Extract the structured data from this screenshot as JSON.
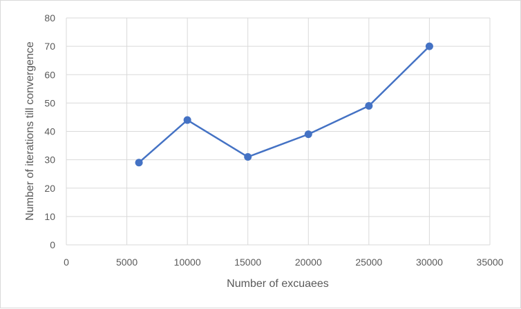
{
  "chart_data": {
    "type": "scatter",
    "title": "",
    "xlabel": "Number of excuaees",
    "ylabel": "Number of iterations till convergence",
    "xlim": [
      0,
      35000
    ],
    "ylim": [
      0,
      80
    ],
    "xticks": [
      0,
      5000,
      10000,
      15000,
      20000,
      25000,
      30000,
      35000
    ],
    "yticks": [
      0,
      10,
      20,
      30,
      40,
      50,
      60,
      70,
      80
    ],
    "grid": true,
    "legend": "none",
    "series": [
      {
        "x": [
          6000,
          10000,
          15000,
          20000,
          25000,
          30000
        ],
        "y": [
          29,
          44,
          31,
          39,
          49,
          70
        ],
        "color": "#4472c4",
        "style": "line-with-markers"
      }
    ]
  }
}
